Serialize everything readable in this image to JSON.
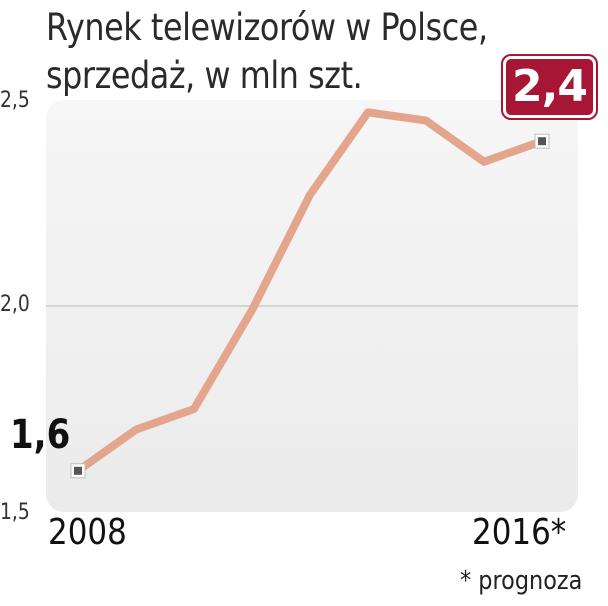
{
  "chart_data": {
    "type": "line",
    "title_lines": [
      "Rynek telewizorów w Polsce,",
      "sprzedaż, w mln szt."
    ],
    "xlabel": "",
    "ylabel": "",
    "x": [
      2008,
      2009,
      2010,
      2011,
      2012,
      2013,
      2014,
      2015,
      2016
    ],
    "series": [
      {
        "values": [
          1.6,
          1.7,
          1.75,
          1.99,
          2.27,
          2.47,
          2.45,
          2.35,
          2.4
        ]
      }
    ],
    "ylim": [
      1.5,
      2.5
    ],
    "yticks": [
      "2,5",
      "2,0",
      "1,5"
    ],
    "ytick_values": [
      2.5,
      2.0,
      1.5
    ],
    "x_tick_labels": [
      "2008",
      "2016*"
    ],
    "start_value_label": "1,6",
    "end_value_label": "2,4",
    "footnote": "* prognoza",
    "grid": "horizontal at 2,0",
    "colors": {
      "line": "#e4a58d",
      "plot_background": "#f1f1f1",
      "badge": "#a71634",
      "marker": "#555555"
    }
  }
}
